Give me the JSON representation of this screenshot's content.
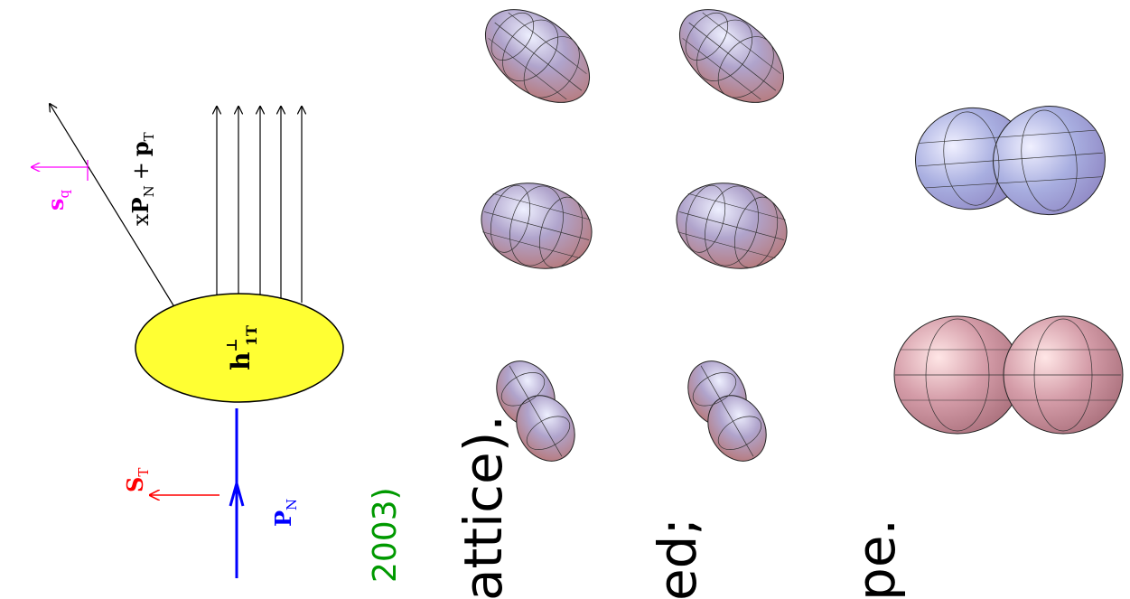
{
  "diagram": {
    "blob_label": {
      "main": "h",
      "sup": "⊥",
      "sub": "1T"
    },
    "quark_momentum": {
      "prefix": "x",
      "P": "P",
      "Psub": "N",
      "plus": "+",
      "p": "p",
      "psub": "T"
    },
    "quark_spin": {
      "s": "s",
      "sub": "q"
    },
    "nucleon_spin": {
      "S": "S",
      "sub": "T"
    },
    "nucleon_momentum": {
      "P": "P",
      "sub": "N"
    },
    "colors": {
      "blob": "#ffff33",
      "nucleon_line": "#0000ff",
      "nucleon_spin": "#ff0000",
      "quark_spin": "#ff00ff"
    }
  },
  "slide_text": {
    "reference_year": "2003)",
    "line_lattice": "attice).",
    "line_ed": "ed;",
    "line_pe": "pe."
  },
  "figure": {
    "rows": [
      "top-row",
      "middle-row",
      "bottom-row"
    ]
  }
}
